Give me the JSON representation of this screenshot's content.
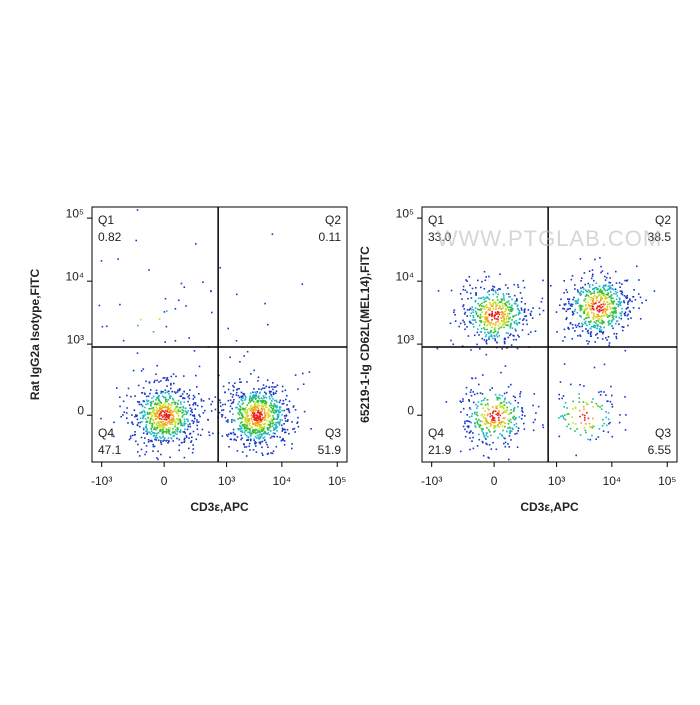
{
  "chart_data": [
    {
      "type": "flow-density",
      "x_label": "CD3ε,APC",
      "y_label": "Rat IgG2a Isotype,FITC",
      "xscale": "biexponential",
      "yscale": "biexponential",
      "xlim": [
        -1500,
        150000
      ],
      "ylim": [
        -400,
        150000
      ],
      "xticks": [
        {
          "value": -1000,
          "label": "-10³"
        },
        0,
        {
          "value": 1000,
          "label": "10³"
        },
        {
          "value": 10000,
          "label": "10⁴"
        },
        {
          "value": 100000,
          "label": "10⁵"
        }
      ],
      "yticks": [
        0,
        {
          "value": 1000,
          "label": "10³"
        },
        {
          "value": 10000,
          "label": "10⁴"
        },
        {
          "value": 100000,
          "label": "10⁵"
        }
      ],
      "gate": {
        "x": 700,
        "y": 900
      },
      "categories": [
        "Q1",
        "Q2",
        "Q3",
        "Q4"
      ],
      "values": [
        0.82,
        0.11,
        51.9,
        47.1
      ],
      "population_x": [
        -100,
        2000,
        3500,
        0
      ],
      "population_y": [
        3000,
        3000,
        0,
        0
      ]
    },
    {
      "type": "flow-density",
      "x_label": "CD3ε,APC",
      "y_label": "65219-1-Ig CD62L(MEL14),FITC",
      "watermark": "WWW.PTGLAB.COM",
      "xscale": "biexponential",
      "yscale": "biexponential",
      "xlim": [
        -1500,
        150000
      ],
      "ylim": [
        -400,
        150000
      ],
      "xticks": [
        {
          "value": -1000,
          "label": "-10³"
        },
        0,
        {
          "value": 1000,
          "label": "10³"
        },
        {
          "value": 10000,
          "label": "10⁴"
        },
        {
          "value": 100000,
          "label": "10⁵"
        }
      ],
      "yticks": [
        0,
        {
          "value": 1000,
          "label": "10³"
        },
        {
          "value": 10000,
          "label": "10⁴"
        },
        {
          "value": 100000,
          "label": "10⁵"
        }
      ],
      "gate": {
        "x": 700,
        "y": 900
      },
      "categories": [
        "Q1",
        "Q2",
        "Q3",
        "Q4"
      ],
      "values": [
        33.0,
        38.5,
        6.55,
        21.9
      ],
      "value_labels": [
        "33.0",
        "38.5",
        "6.55",
        "21.9"
      ],
      "population_x": [
        0,
        5500,
        3000,
        0
      ],
      "population_y": [
        3000,
        4000,
        0,
        0
      ]
    }
  ]
}
